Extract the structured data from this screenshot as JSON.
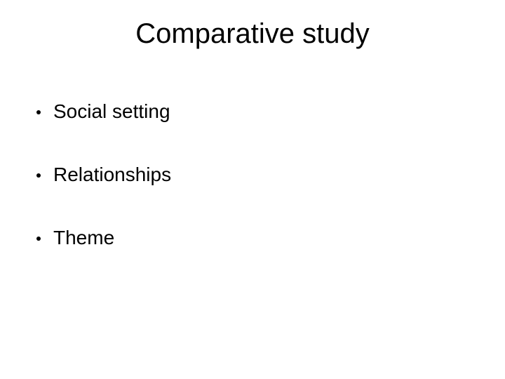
{
  "slide": {
    "title": "Comparative study",
    "bullets": [
      {
        "text": "Social setting"
      },
      {
        "text": "Relationships"
      },
      {
        "text": "Theme"
      }
    ],
    "title_fontsize": 40,
    "bullet_fontsize": 28,
    "background_color": "#ffffff",
    "text_color": "#000000",
    "bullet_marker_color": "#000000"
  }
}
